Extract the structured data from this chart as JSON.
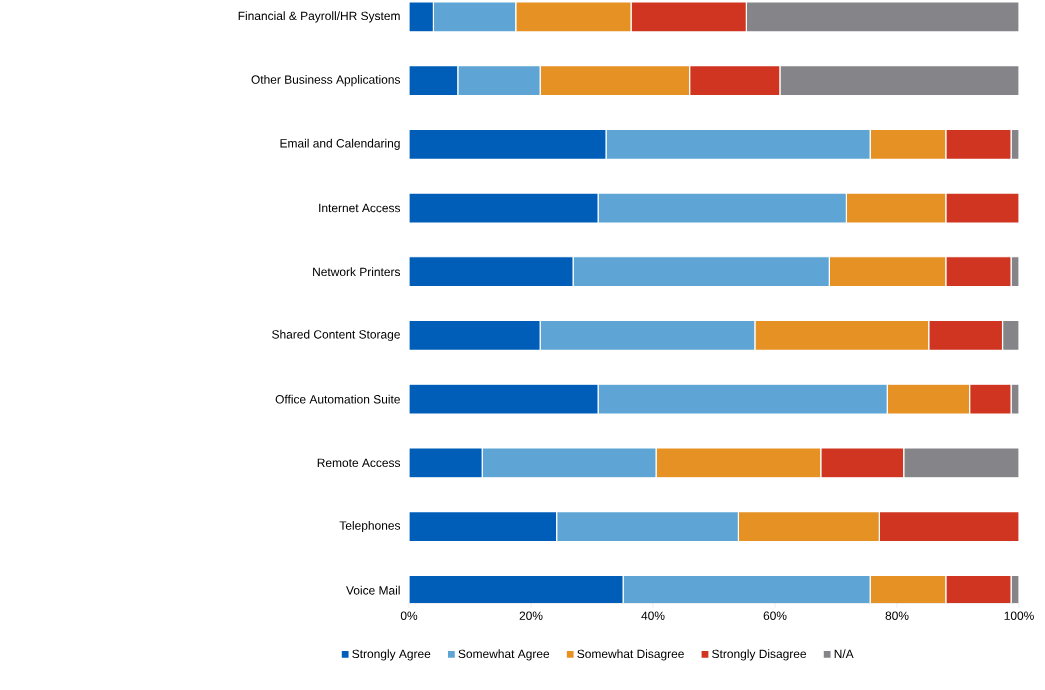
{
  "chart_data": {
    "type": "bar",
    "orientation": "horizontal",
    "stacked": true,
    "categories": [
      "Financial & Payroll/HR System",
      "Other Business Applications",
      "Email and Calendaring",
      "Internet Access",
      "Network Printers",
      "Shared Content Storage",
      "Office Automation Suite",
      "Remote Access",
      "Telephones",
      "Voice Mail"
    ],
    "series": [
      {
        "name": "Strongly Agree",
        "color": "#005eb8",
        "values": [
          4,
          8,
          32.3,
          31,
          26.9,
          21.5,
          31,
          12,
          24.2,
          35.1
        ]
      },
      {
        "name": "Somewhat Agree",
        "color": "#5ea5d6",
        "values": [
          13.5,
          13.5,
          43.3,
          40.7,
          42,
          35.2,
          47.4,
          28.5,
          29.8,
          40.5
        ]
      },
      {
        "name": "Somewhat Disagree",
        "color": "#e69123",
        "values": [
          18.9,
          24.5,
          12.4,
          16.3,
          19.1,
          28.5,
          13.5,
          27,
          23.1,
          12.4
        ]
      },
      {
        "name": "Strongly Disagree",
        "color": "#cf3520",
        "values": [
          18.9,
          14.8,
          10.7,
          12,
          10.7,
          12.1,
          6.8,
          13.6,
          22.9,
          10.7
        ]
      },
      {
        "name": "N/A",
        "color": "#858488",
        "values": [
          44.7,
          39.2,
          1.3,
          0,
          1.3,
          2.7,
          1.3,
          18.9,
          0,
          1.3
        ]
      }
    ],
    "xlim": [
      0,
      100
    ],
    "xticks": [
      {
        "value": 0,
        "label": "0%"
      },
      {
        "value": 20,
        "label": "20%"
      },
      {
        "value": 40,
        "label": "40%"
      },
      {
        "value": 60,
        "label": "60%"
      },
      {
        "value": 80,
        "label": "80%"
      },
      {
        "value": 100,
        "label": "100%"
      }
    ],
    "legend": "bottom"
  }
}
